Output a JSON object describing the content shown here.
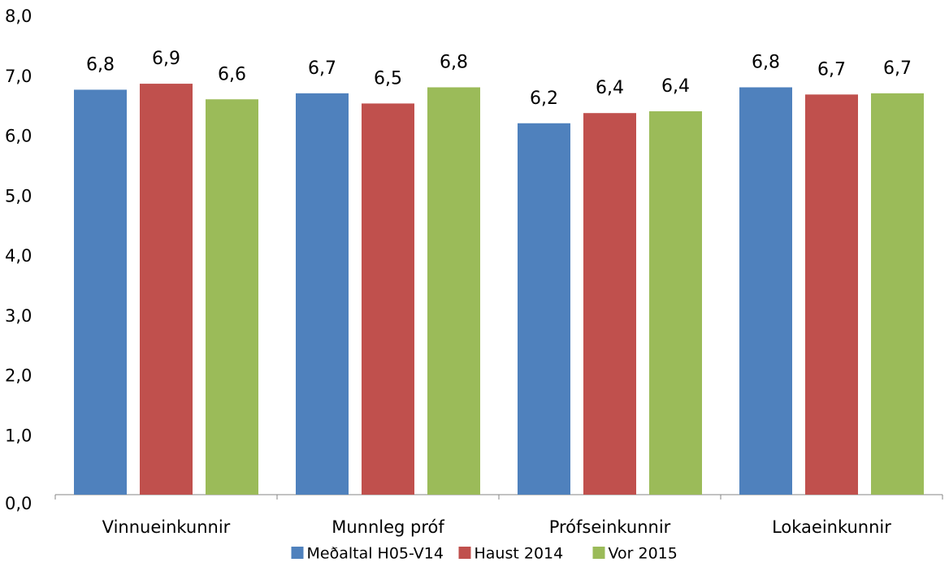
{
  "chart_data": {
    "type": "bar",
    "categories": [
      "Vinnueinkunnir",
      "Munnleg próf",
      "Prófseinkunnir",
      "Lokaeinkunnir"
    ],
    "series": [
      {
        "name": "Meðaltal H05-V14",
        "color": "#4f81bd",
        "values": [
          6.76,
          6.7,
          6.2,
          6.8
        ],
        "value_labels": [
          "6,8",
          "6,7",
          "6,2",
          "6,8"
        ]
      },
      {
        "name": "Haust 2014",
        "color": "#c0504d",
        "values": [
          6.86,
          6.53,
          6.37,
          6.68
        ],
        "value_labels": [
          "6,9",
          "6,5",
          "6,4",
          "6,7"
        ]
      },
      {
        "name": "Vor 2015",
        "color": "#9bbb59",
        "values": [
          6.6,
          6.8,
          6.4,
          6.7
        ],
        "value_labels": [
          "6,6",
          "6,8",
          "6,4",
          "6,7"
        ]
      }
    ],
    "ylim": [
      0,
      8
    ],
    "yticks": [
      {
        "value": 0,
        "label": "0,0"
      },
      {
        "value": 1,
        "label": "1,0"
      },
      {
        "value": 2,
        "label": "2,0"
      },
      {
        "value": 3,
        "label": "3,0"
      },
      {
        "value": 4,
        "label": "4,0"
      },
      {
        "value": 5,
        "label": "5,0"
      },
      {
        "value": 6,
        "label": "6,0"
      },
      {
        "value": 7,
        "label": "7,0"
      },
      {
        "value": 8,
        "label": "8,0"
      }
    ],
    "grid": false,
    "legend": "bottom"
  }
}
